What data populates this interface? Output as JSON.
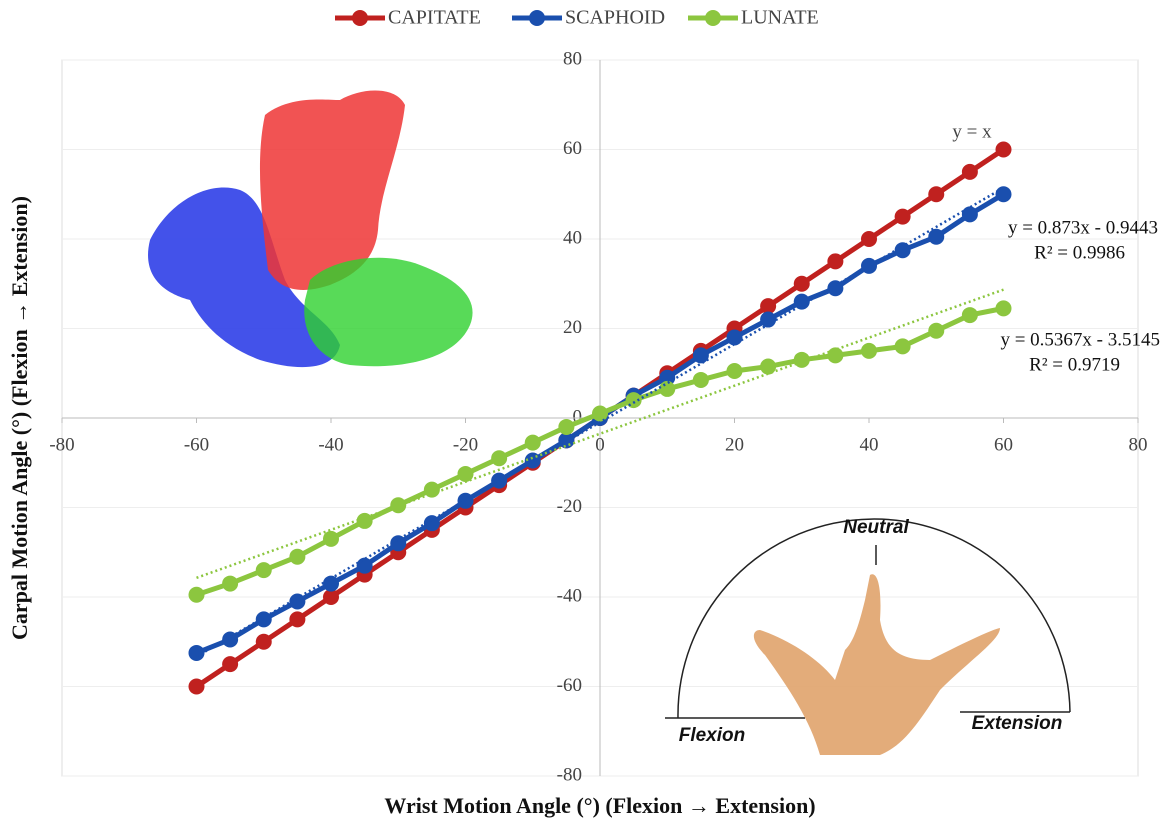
{
  "chart_data": {
    "type": "line",
    "x_label": "Wrist Motion Angle (°) (Flexion → Extension)",
    "y_label": "Carpal Motion Angle (°) (Flexion → Extension)",
    "x": [
      -60,
      -55,
      -50,
      -45,
      -40,
      -35,
      -30,
      -25,
      -20,
      -15,
      -10,
      -5,
      0,
      5,
      10,
      15,
      20,
      25,
      30,
      35,
      40,
      45,
      50,
      55,
      60
    ],
    "series": [
      {
        "name": "CAPITATE",
        "color": "#c0211f",
        "values": [
          -60,
          -55,
          -50,
          -45,
          -40,
          -35,
          -30,
          -25,
          -20,
          -15,
          -10,
          -5,
          0,
          5,
          10,
          15,
          20,
          25,
          30,
          35,
          40,
          45,
          50,
          55,
          60
        ]
      },
      {
        "name": "SCAPHOID",
        "color": "#1a4fae",
        "values": [
          -52.5,
          -49.5,
          -45,
          -41,
          -37,
          -33,
          -28,
          -23.5,
          -18.5,
          -14,
          -9.5,
          -5,
          0,
          5,
          9,
          14,
          18,
          22,
          26,
          29,
          34,
          37.5,
          40.5,
          45.5,
          50
        ]
      },
      {
        "name": "LUNATE",
        "color": "#8cc63f",
        "values": [
          -39.5,
          -37,
          -34,
          -31,
          -27,
          -23,
          -19.5,
          -16,
          -12.5,
          -9,
          -5.5,
          -2,
          1,
          4,
          6.5,
          8.5,
          10.5,
          11.5,
          13,
          14,
          15,
          16,
          19.5,
          23,
          24.5
        ]
      }
    ],
    "trendlines": [
      {
        "series": 1,
        "slope": 0.873,
        "intercept": -0.9443,
        "equation": "y = 0.873x - 0.9443",
        "r2": "R² = 0.9986"
      },
      {
        "series": 2,
        "slope": 0.5367,
        "intercept": -3.5145,
        "equation": "y = 0.5367x - 3.5145",
        "r2": "R² = 0.9719"
      }
    ],
    "identity_label": "y = x",
    "inset_labels": {
      "neutral": "Neutral",
      "flexion": "Flexion",
      "extension": "Extension"
    },
    "xlim": [
      -80,
      80
    ],
    "xticks": [
      -80,
      -60,
      -40,
      -20,
      0,
      20,
      40,
      60,
      80
    ],
    "ylim": [
      -80,
      80
    ],
    "yticks": [
      -80,
      -60,
      -40,
      -20,
      0,
      20,
      40,
      60,
      80
    ],
    "grid": true,
    "legend": "top"
  }
}
